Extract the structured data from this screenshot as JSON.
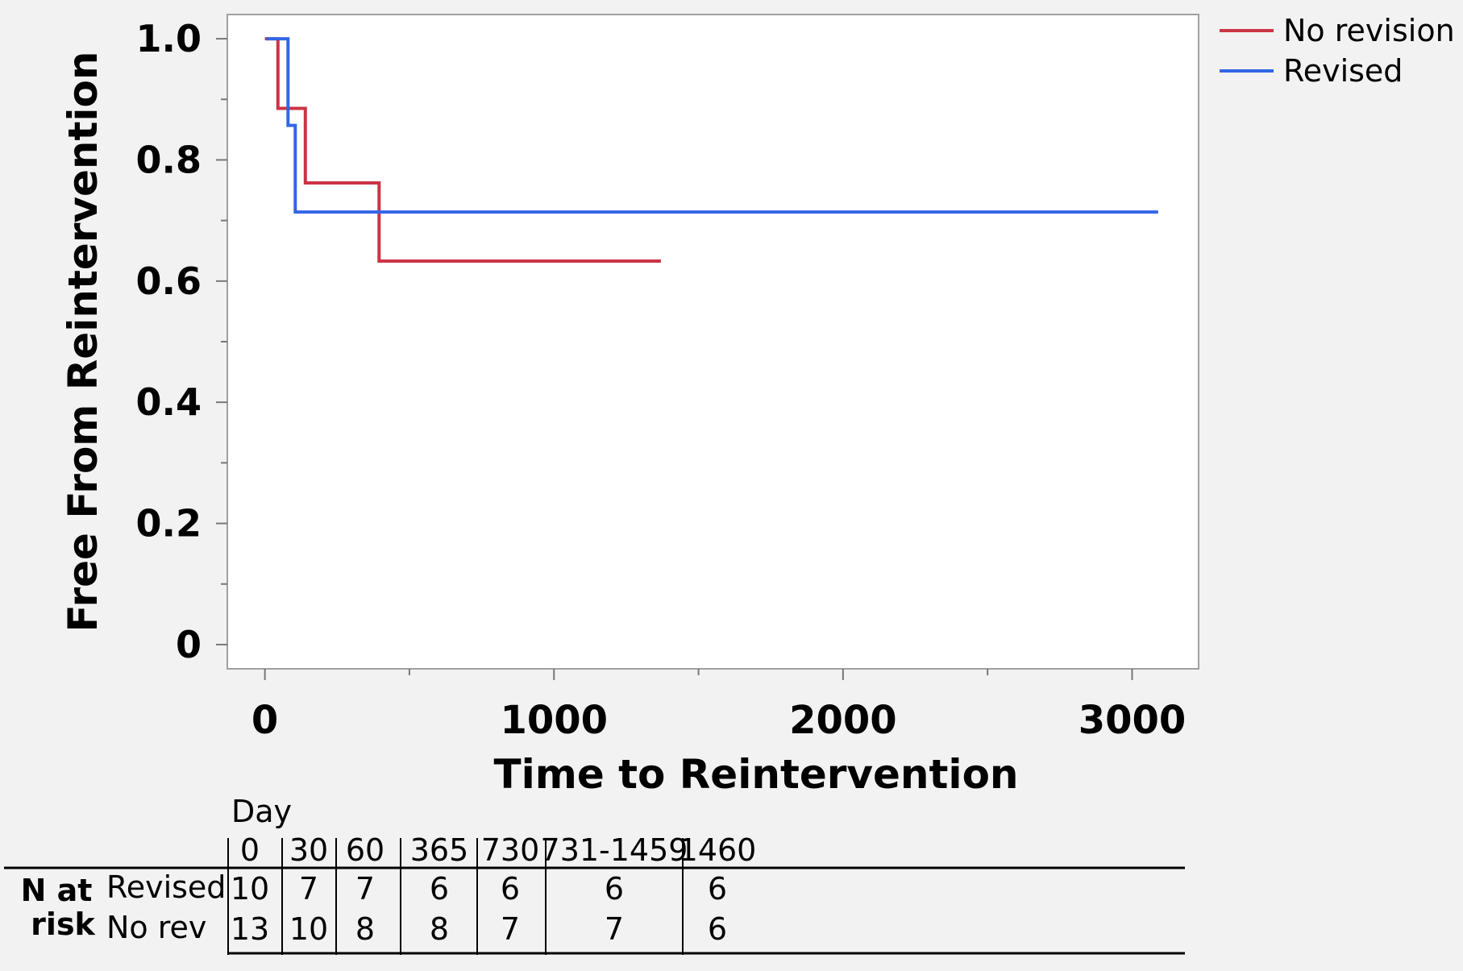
{
  "chart_data": {
    "type": "line",
    "step": true,
    "xlabel": "Time to Reintervention",
    "ylabel": "Free From Reintervention",
    "xlim": [
      -130,
      3230
    ],
    "ylim": [
      -0.04,
      1.04
    ],
    "x_ticks": [
      0,
      1000,
      2000,
      3000
    ],
    "x_tick_labels": [
      "0",
      "1000",
      "2000",
      "3000"
    ],
    "x_minor_ticks": [
      500,
      1500,
      2500
    ],
    "y_ticks": [
      0,
      0.2,
      0.4,
      0.6,
      0.8,
      1.0
    ],
    "y_tick_labels": [
      "0",
      "0.2",
      "0.4",
      "0.6",
      "0.8",
      "1.0"
    ],
    "y_minor_ticks": [
      0.1,
      0.3,
      0.5,
      0.7,
      0.9
    ],
    "grid": false,
    "legend_position": "top-right",
    "colors": {
      "No revision": "#cc3344",
      "Revised": "#3366e6"
    },
    "series": [
      {
        "name": "No revision",
        "color": "#cc3344",
        "points": [
          [
            0,
            1.0
          ],
          [
            45,
            1.0
          ],
          [
            45,
            0.885
          ],
          [
            140,
            0.885
          ],
          [
            140,
            0.762
          ],
          [
            395,
            0.762
          ],
          [
            395,
            0.633
          ],
          [
            1370,
            0.633
          ]
        ]
      },
      {
        "name": "Revised",
        "color": "#3366e6",
        "points": [
          [
            5,
            1.0
          ],
          [
            80,
            1.0
          ],
          [
            80,
            0.857
          ],
          [
            105,
            0.857
          ],
          [
            105,
            0.714
          ],
          [
            3090,
            0.714
          ]
        ]
      }
    ]
  },
  "risk_table": {
    "header_label": "Day",
    "title_line1": "N at",
    "title_line2": "risk",
    "columns": [
      "0",
      "30",
      "60",
      "365",
      "730",
      "731-1459",
      "1460"
    ],
    "rows": [
      {
        "label": "Revised",
        "values": [
          "10",
          "7",
          "7",
          "6",
          "6",
          "6",
          "6"
        ]
      },
      {
        "label": "No rev",
        "values": [
          "13",
          "10",
          "8",
          "8",
          "7",
          "7",
          "6"
        ]
      }
    ]
  }
}
